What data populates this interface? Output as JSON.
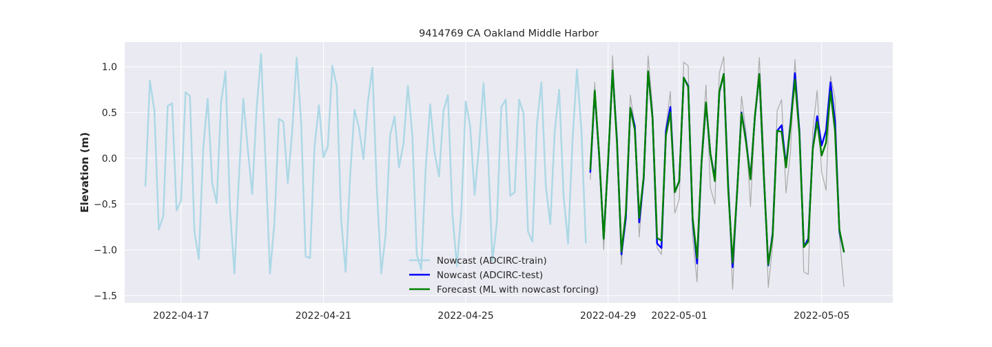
{
  "chart_data": {
    "type": "line",
    "title": "9414769 CA Oakland Middle Harbor",
    "xlabel": "",
    "ylabel": "Elevation (m)",
    "x_axis": {
      "type": "date",
      "range": [
        "2022-04-15T10:00",
        "2022-05-07T00:00"
      ],
      "ticks": [
        "2022-04-17",
        "2022-04-21",
        "2022-04-25",
        "2022-04-29",
        "2022-05-01",
        "2022-05-05"
      ]
    },
    "y_axis": {
      "range": [
        -1.58,
        1.27
      ],
      "ticks": [
        -1.5,
        -1.0,
        -0.5,
        0.0,
        0.5,
        1.0
      ],
      "tick_labels": [
        "−1.5",
        "−1.0",
        "−0.5",
        "0.0",
        "0.5",
        "1.0"
      ]
    },
    "grid": true,
    "background": "#eaeaf2",
    "legend": {
      "placement": "lower-center"
    },
    "series": [
      {
        "name": "Nowcast (ADCIRC-train)",
        "color": "#add8e6",
        "linewidth": 2.5,
        "start": "2022-04-16T00:00",
        "step_hours": 3,
        "values": [
          -0.3,
          0.85,
          0.52,
          -0.78,
          -0.63,
          0.57,
          0.6,
          -0.57,
          -0.46,
          0.72,
          0.68,
          -0.8,
          -1.1,
          0.12,
          0.65,
          -0.27,
          -0.49,
          0.61,
          0.95,
          -0.55,
          -1.26,
          -0.22,
          0.65,
          0.1,
          -0.39,
          0.55,
          1.14,
          -0.04,
          -1.26,
          -0.7,
          0.43,
          0.4,
          -0.27,
          0.3,
          1.1,
          0.4,
          -1.07,
          -1.09,
          0.12,
          0.58,
          0.01,
          0.13,
          1.01,
          0.79,
          -0.68,
          -1.24,
          -0.2,
          0.53,
          0.33,
          -0.01,
          0.61,
          0.99,
          -0.31,
          -1.26,
          -0.83,
          0.25,
          0.46,
          -0.1,
          0.16,
          0.79,
          0.25,
          -1.05,
          -1.22,
          -0.1,
          0.59,
          0.06,
          -0.2,
          0.52,
          0.69,
          -0.6,
          -1.18,
          -0.59,
          0.62,
          0.35,
          -0.4,
          0.13,
          0.82,
          0.05,
          -1.12,
          -0.7,
          0.56,
          0.64,
          -0.41,
          -0.37,
          0.64,
          0.49,
          -0.8,
          -0.91,
          0.37,
          0.83,
          -0.3,
          -0.72,
          0.29,
          0.75,
          -0.41,
          -0.93,
          0.2,
          0.97,
          0.3,
          -0.92
        ]
      },
      {
        "name": "",
        "color": "#aaaaaa",
        "linewidth": 1.2,
        "start": "2022-04-28T12:00",
        "step_hours": 3,
        "values": [
          -0.23,
          0.83,
          0.05,
          -1.0,
          -0.1,
          1.12,
          0.2,
          -1.16,
          -0.5,
          0.69,
          0.35,
          -0.86,
          -0.22,
          1.12,
          0.55,
          -0.98,
          -1.05,
          0.34,
          0.73,
          -0.6,
          -0.45,
          1.05,
          1.01,
          -0.86,
          -1.35,
          0.05,
          0.8,
          -0.32,
          -0.5,
          0.93,
          1.11,
          -0.35,
          -1.43,
          -0.4,
          0.68,
          0.29,
          -0.53,
          0.42,
          1.1,
          0.05,
          -1.41,
          -0.95,
          0.52,
          0.64,
          -0.38,
          0.07,
          1.08,
          0.34,
          -1.24,
          -1.27,
          0.3,
          0.74,
          -0.15,
          -0.35,
          0.9,
          0.65,
          -0.85,
          -1.4
        ]
      },
      {
        "name": "Nowcast (ADCIRC-test)",
        "color": "#0000ff",
        "linewidth": 2.5,
        "start": "2022-04-28T12:00",
        "step_hours": 3,
        "values": [
          -0.15,
          0.73,
          0.02,
          -0.87,
          -0.05,
          0.96,
          0.2,
          -1.05,
          -0.65,
          0.55,
          0.35,
          -0.7,
          -0.22,
          0.95,
          0.44,
          -0.93,
          -0.98,
          0.3,
          0.56,
          -0.37,
          -0.25,
          0.88,
          0.79,
          -0.67,
          -1.15,
          -0.05,
          0.6,
          0.05,
          -0.22,
          0.72,
          0.92,
          -0.3,
          -1.19,
          -0.37,
          0.5,
          0.2,
          -0.22,
          0.45,
          0.92,
          -0.18,
          -1.17,
          -0.82,
          0.3,
          0.36,
          -0.08,
          0.38,
          0.93,
          0.3,
          -0.97,
          -0.88,
          0.1,
          0.46,
          0.14,
          0.3,
          0.83,
          0.4,
          -0.8,
          -1.02
        ]
      },
      {
        "name": "Forecast (ML with nowcast forcing)",
        "color": "#008000",
        "linewidth": 2.5,
        "start": "2022-04-28T12:00",
        "step_hours": 3,
        "values": [
          -0.12,
          0.74,
          0.03,
          -0.88,
          -0.03,
          0.96,
          0.17,
          -1.02,
          -0.6,
          0.55,
          0.31,
          -0.65,
          -0.2,
          0.95,
          0.43,
          -0.87,
          -0.9,
          0.25,
          0.5,
          -0.37,
          -0.25,
          0.88,
          0.78,
          -0.65,
          -1.09,
          -0.05,
          0.61,
          0.05,
          -0.25,
          0.73,
          0.92,
          -0.35,
          -1.14,
          -0.37,
          0.49,
          0.18,
          -0.23,
          0.46,
          0.92,
          -0.18,
          -1.16,
          -0.85,
          0.3,
          0.29,
          -0.1,
          0.36,
          0.86,
          0.27,
          -0.97,
          -0.91,
          0.1,
          0.4,
          0.03,
          0.17,
          0.73,
          0.3,
          -0.78,
          -1.02
        ]
      }
    ]
  }
}
